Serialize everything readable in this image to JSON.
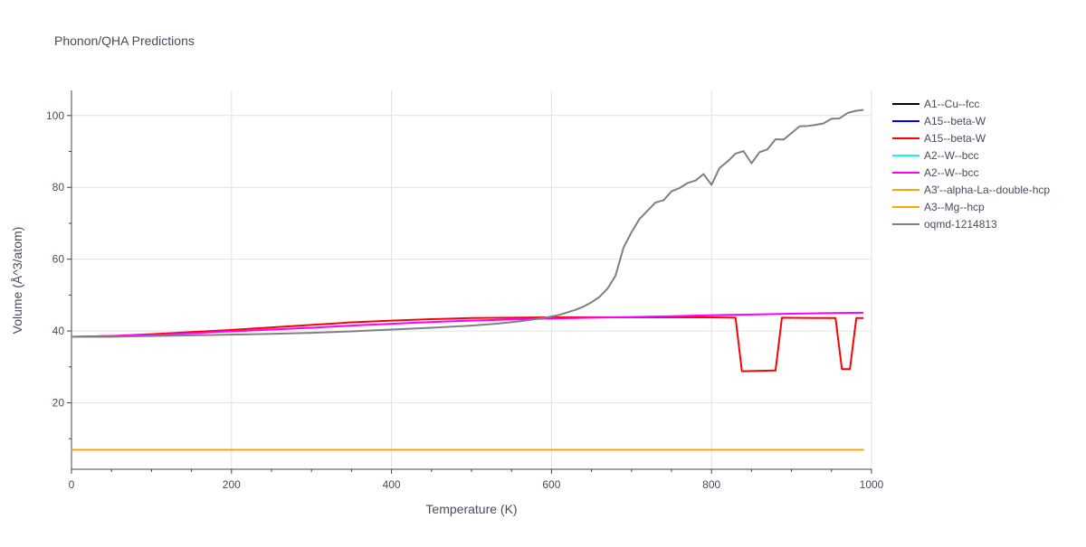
{
  "chart_data": {
    "type": "line",
    "title": "Phonon/QHA Predictions",
    "xlabel": "Temperature (K)",
    "ylabel": "Volume (Å^3/atom)",
    "xlim": [
      0,
      1000
    ],
    "ylim": [
      1.5,
      107
    ],
    "x_ticks": [
      0,
      200,
      400,
      600,
      800,
      1000
    ],
    "y_ticks": [
      20,
      40,
      60,
      80,
      100
    ],
    "x_minor_ticks": [
      50,
      100,
      150,
      250,
      300,
      350,
      450,
      500,
      550,
      650,
      700,
      750,
      850,
      900,
      950
    ],
    "y_minor_ticks": [
      10,
      30,
      50,
      70,
      90
    ],
    "grid": true,
    "legend_position": "right",
    "series": [
      {
        "name": "A1--Cu--fcc",
        "color": "#000000",
        "x": [
          0,
          990
        ],
        "y": [
          6.9,
          6.9
        ]
      },
      {
        "name": "A15--beta-W",
        "color": "#0000ff",
        "x": [
          0,
          990
        ],
        "y": [
          6.9,
          6.9
        ]
      },
      {
        "name": "A15--beta-W",
        "color": "#ff0000",
        "x": [
          0,
          50,
          100,
          150,
          200,
          250,
          300,
          350,
          400,
          450,
          500,
          550,
          600,
          650,
          700,
          750,
          800,
          830,
          838,
          880,
          888,
          955,
          963,
          973,
          981,
          990
        ],
        "y": [
          38.4,
          38.6,
          39.1,
          39.7,
          40.3,
          41.0,
          41.7,
          42.4,
          42.9,
          43.3,
          43.6,
          43.7,
          43.8,
          43.8,
          43.8,
          43.8,
          43.8,
          43.7,
          28.8,
          29.0,
          43.7,
          43.6,
          29.4,
          29.4,
          43.6,
          43.6
        ]
      },
      {
        "name": "A2--W--bcc",
        "color": "#00ffff",
        "x": [
          0,
          990
        ],
        "y": [
          6.9,
          6.9
        ]
      },
      {
        "name": "A2--W--bcc",
        "color": "#ff00ff",
        "x": [
          0,
          50,
          100,
          150,
          200,
          250,
          300,
          350,
          400,
          450,
          500,
          550,
          600,
          650,
          700,
          750,
          800,
          850,
          900,
          950,
          990
        ],
        "y": [
          38.4,
          38.6,
          38.9,
          39.4,
          39.9,
          40.4,
          40.9,
          41.5,
          42.0,
          42.5,
          42.9,
          43.2,
          43.5,
          43.7,
          43.9,
          44.1,
          44.4,
          44.6,
          44.8,
          45.0,
          45.1
        ]
      },
      {
        "name": "A3'--alpha-La--double-hcp",
        "color": "#ffa500",
        "x": [
          0,
          990
        ],
        "y": [
          6.9,
          6.9
        ]
      },
      {
        "name": "A3--Mg--hcp",
        "color": "#ffa500",
        "x": [
          0,
          990
        ],
        "y": [
          6.9,
          6.9
        ]
      },
      {
        "name": "oqmd-1214813",
        "color": "#808080",
        "x": [
          0,
          50,
          100,
          150,
          200,
          250,
          300,
          350,
          400,
          450,
          500,
          530,
          560,
          590,
          610,
          620,
          630,
          640,
          650,
          660,
          670,
          680,
          690,
          700,
          710,
          720,
          730,
          740,
          750,
          760,
          770,
          780,
          790,
          800,
          810,
          820,
          830,
          840,
          850,
          860,
          870,
          880,
          890,
          900,
          910,
          920,
          930,
          940,
          950,
          960,
          970,
          980,
          990
        ],
        "y": [
          38.4,
          38.4,
          38.6,
          38.8,
          39.0,
          39.2,
          39.5,
          39.9,
          40.4,
          40.9,
          41.5,
          42.0,
          42.7,
          43.6,
          44.5,
          45.2,
          45.9,
          46.8,
          48.0,
          49.5,
          51.8,
          55.4,
          63.2,
          67.5,
          71.2,
          73.5,
          75.8,
          76.4,
          78.9,
          79.8,
          81.2,
          81.9,
          83.7,
          80.7,
          85.4,
          87.2,
          89.4,
          90.1,
          86.7,
          89.8,
          90.6,
          93.4,
          93.3,
          95.1,
          97.0,
          97.1,
          97.4,
          97.8,
          99.1,
          99.2,
          100.7,
          101.3,
          101.6
        ]
      }
    ]
  }
}
